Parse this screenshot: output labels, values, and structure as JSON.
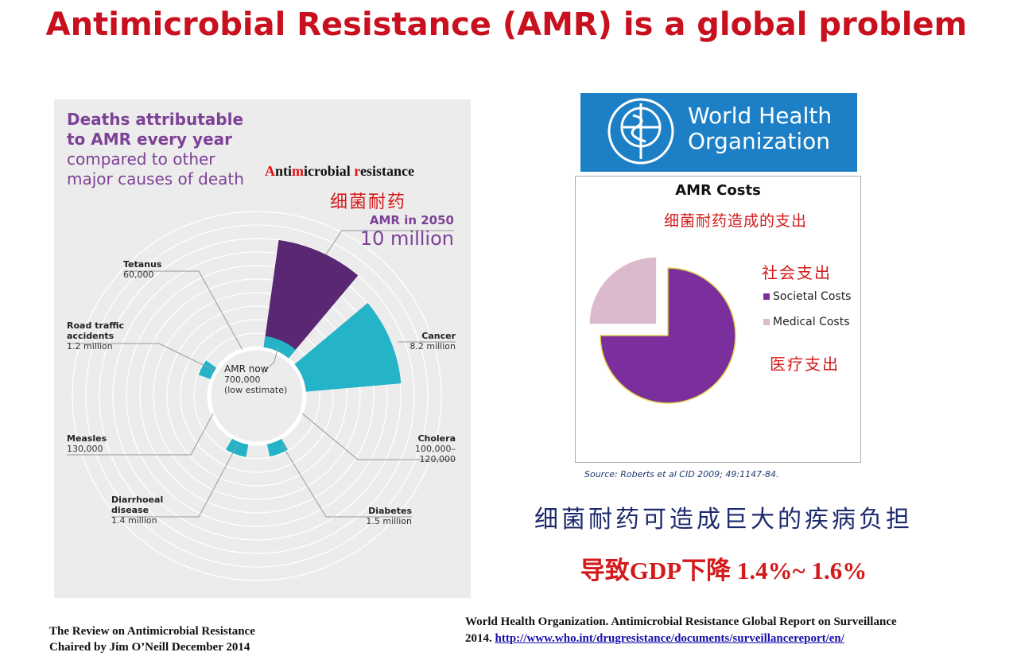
{
  "title": "Antimicrobial Resistance (AMR) is a global problem",
  "infographic": {
    "heading": [
      "Deaths attributable",
      "to AMR every year"
    ],
    "subheading": [
      "compared to other",
      "major causes of death"
    ],
    "overlay_title": "Antimicrobial resistance",
    "overlay_title_cn": "细菌耐药",
    "amr_2050": {
      "label": "AMR in 2050",
      "value": "10 million"
    },
    "amr_now": {
      "label": "AMR now",
      "value": "700,000",
      "note": "(low estimate)"
    },
    "causes": [
      {
        "name": [
          "Tetanus"
        ],
        "value": [
          "60,000"
        ]
      },
      {
        "name": [
          "Road traffic",
          "accidents"
        ],
        "value": [
          "1.2 million"
        ]
      },
      {
        "name": [
          "Measles"
        ],
        "value": [
          "130,000"
        ]
      },
      {
        "name": [
          "Diarrhoeal",
          "disease"
        ],
        "value": [
          "1.4 million"
        ]
      },
      {
        "name": [
          "Diabetes"
        ],
        "value": [
          "1.5 million"
        ]
      },
      {
        "name": [
          "Cholera"
        ],
        "value": [
          "100,000–",
          "120,000"
        ]
      },
      {
        "name": [
          "Cancer"
        ],
        "value": [
          "8.2 million"
        ]
      }
    ]
  },
  "who_logo": [
    "World Health",
    "Organization"
  ],
  "chart_data": {
    "type": "pie",
    "title": "AMR Costs",
    "subtitle": "细菌耐药造成的支出",
    "categories": [
      "Societal Costs",
      "Medical Costs"
    ],
    "values": [
      75,
      25
    ],
    "colors": [
      "#7a2f9c",
      "#dcbacd"
    ],
    "explode": [
      false,
      true
    ],
    "annotations": [
      "社会支出",
      "医疗支出"
    ],
    "source": "Source: Roberts et al CID 2009; 49:1147-84."
  },
  "statement": "细菌耐药可造成巨大的疾病负担",
  "gdp_statement": "导致GDP下降 1.4%~ 1.6%",
  "footer_left": [
    "The Review on Antimicrobial Resistance",
    "Chaired by Jim O’Neill December 2014"
  ],
  "footer_right": {
    "text": [
      "World Health Organization. Antimicrobial Resistance Global Report on Surveillance",
      "2014."
    ],
    "link": "http://www.who.int/drugresistance/documents/surveillancereport/en/"
  }
}
